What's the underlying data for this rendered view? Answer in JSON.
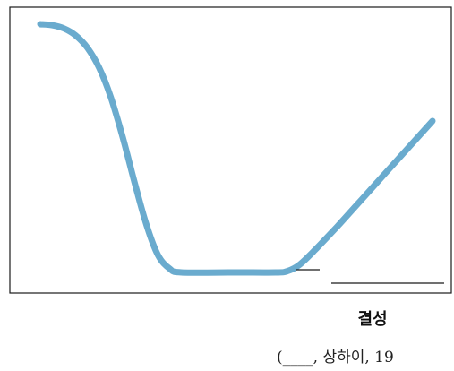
{
  "chart_data": {
    "type": "line",
    "title": "",
    "xlabel": "",
    "ylabel": "",
    "xlim": [
      0,
      100
    ],
    "ylim": [
      0,
      100
    ],
    "grid": false,
    "series": [
      {
        "color": "#6aabce",
        "points": [
          [
            0,
            100
          ],
          [
            3,
            99.6
          ],
          [
            6,
            98.3
          ],
          [
            9,
            95.5
          ],
          [
            12,
            90.5
          ],
          [
            15,
            82.5
          ],
          [
            18,
            70.5
          ],
          [
            21,
            54.5
          ],
          [
            24,
            36.5
          ],
          [
            27,
            19.5
          ],
          [
            30,
            7
          ],
          [
            33,
            1.5
          ],
          [
            36,
            0
          ],
          [
            50,
            0
          ],
          [
            60,
            0
          ],
          [
            63,
            0.5
          ],
          [
            66,
            3
          ],
          [
            70,
            9
          ],
          [
            76,
            19
          ],
          [
            82,
            29.5
          ],
          [
            88,
            40
          ],
          [
            94,
            50.5
          ],
          [
            100,
            61
          ]
        ]
      }
    ],
    "annotation": "결성"
  },
  "citation": "(____, 상하이, 19"
}
